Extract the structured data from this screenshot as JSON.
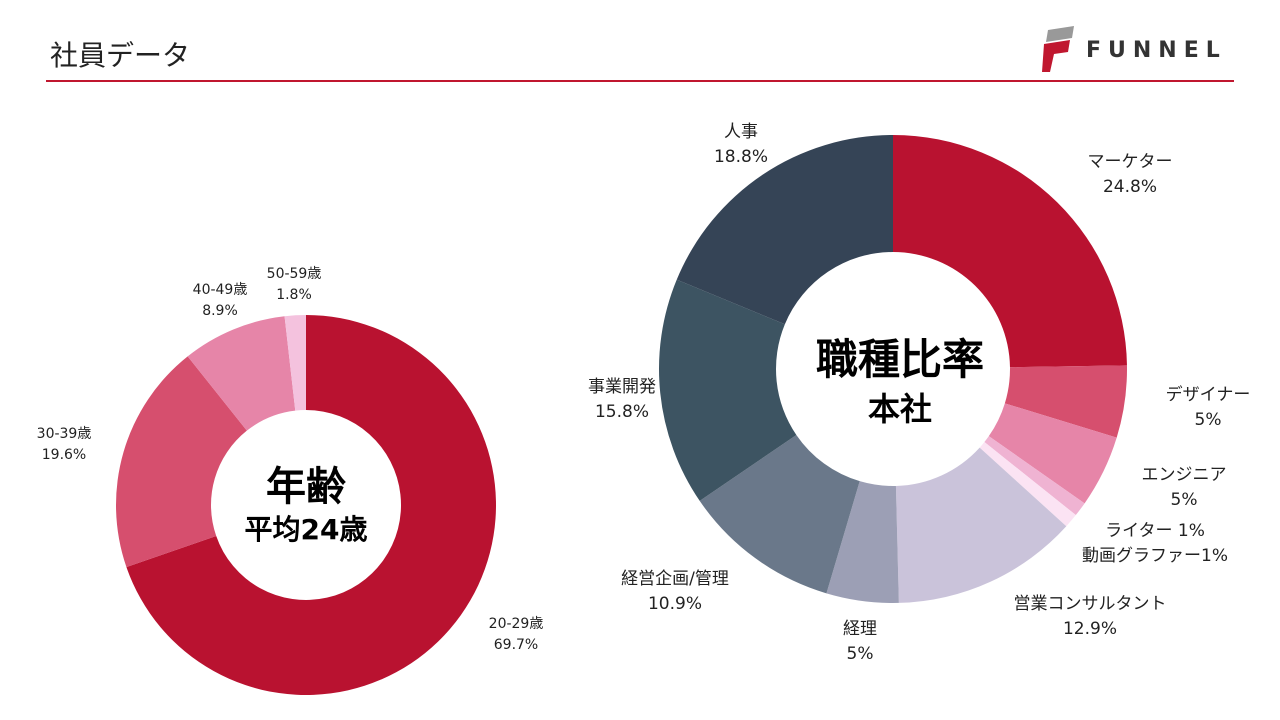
{
  "header": {
    "title": "社員データ",
    "logo_text": "FUNNEL"
  },
  "chart_data": [
    {
      "type": "pie",
      "donut": true,
      "center_title": "年齢",
      "center_subtitle": "平均24歳",
      "slices": [
        {
          "label": "20-29歳",
          "value": 69.7,
          "display": "69.7%",
          "color": "#B91230"
        },
        {
          "label": "30-39歳",
          "value": 19.6,
          "display": "19.6%",
          "color": "#D64F6E"
        },
        {
          "label": "40-49歳",
          "value": 8.9,
          "display": "8.9%",
          "color": "#E685A8"
        },
        {
          "label": "50-59歳",
          "value": 1.8,
          "display": "1.8%",
          "color": "#F4C2DE"
        }
      ]
    },
    {
      "type": "pie",
      "donut": true,
      "center_title": "職種比率",
      "center_subtitle": "本社",
      "slices": [
        {
          "label": "マーケター",
          "value": 24.8,
          "display": "24.8%",
          "color": "#B91230"
        },
        {
          "label": "デザイナー",
          "value": 5,
          "display": "5%",
          "color": "#D64F6E"
        },
        {
          "label": "エンジニア",
          "value": 5,
          "display": "5%",
          "color": "#E685A8"
        },
        {
          "label": "ライター",
          "value": 1,
          "display": "1%",
          "color": "#EFB3D2"
        },
        {
          "label": "動画グラファー",
          "value": 1,
          "display": "1%",
          "color": "#FBE3F3"
        },
        {
          "label": "営業コンサルタント",
          "value": 12.9,
          "display": "12.9%",
          "color": "#CAC3DA"
        },
        {
          "label": "経理",
          "value": 5,
          "display": "5%",
          "color": "#9C9FB5"
        },
        {
          "label": "経営企画/管理",
          "value": 10.9,
          "display": "10.9%",
          "color": "#6A788A"
        },
        {
          "label": "事業開発",
          "value": 15.8,
          "display": "15.8%",
          "color": "#3D5462"
        },
        {
          "label": "人事",
          "value": 18.8,
          "display": "18.8%",
          "color": "#354456"
        }
      ]
    }
  ]
}
